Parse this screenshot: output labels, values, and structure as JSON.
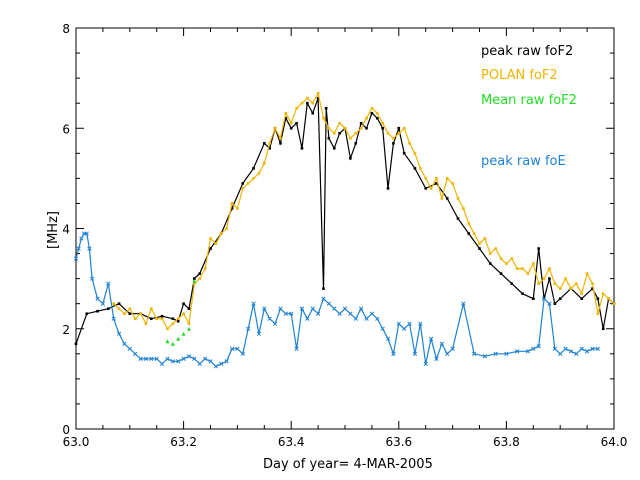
{
  "chart_data": {
    "type": "line",
    "xlabel": "Day of year= 4-MAR-2005",
    "ylabel": "[MHz]",
    "xlim": [
      63.0,
      64.0
    ],
    "ylim": [
      0,
      8
    ],
    "x_ticks": [
      "63.0",
      "63.2",
      "63.4",
      "63.6",
      "63.8",
      "64.0"
    ],
    "y_ticks": [
      "0",
      "2",
      "4",
      "6",
      "8"
    ],
    "legend": [
      {
        "name": "peak raw foF2",
        "color": "#000000"
      },
      {
        "name": "POLAN foF2",
        "color": "#f0b400"
      },
      {
        "name": "Mean raw foF2",
        "color": "#22dd22"
      },
      {
        "name": "peak raw foE",
        "color": "#1e82d2"
      }
    ],
    "series": [
      {
        "name": "peak raw foF2",
        "color": "#000000",
        "x": [
          63.0,
          63.02,
          63.04,
          63.06,
          63.08,
          63.1,
          63.12,
          63.14,
          63.16,
          63.18,
          63.19,
          63.2,
          63.21,
          63.22,
          63.23,
          63.25,
          63.27,
          63.29,
          63.31,
          63.33,
          63.35,
          63.36,
          63.37,
          63.38,
          63.39,
          63.4,
          63.41,
          63.42,
          63.43,
          63.44,
          63.45,
          63.46,
          63.465,
          63.47,
          63.48,
          63.49,
          63.5,
          63.51,
          63.52,
          63.53,
          63.54,
          63.55,
          63.56,
          63.57,
          63.58,
          63.59,
          63.6,
          63.61,
          63.63,
          63.65,
          63.67,
          63.69,
          63.71,
          63.73,
          63.75,
          63.77,
          63.79,
          63.81,
          63.83,
          63.85,
          63.86,
          63.87,
          63.88,
          63.89,
          63.9,
          63.92,
          63.94,
          63.96,
          63.97,
          63.98,
          63.99,
          64.0
        ],
        "values": [
          1.7,
          2.3,
          2.35,
          2.4,
          2.5,
          2.3,
          2.3,
          2.2,
          2.25,
          2.2,
          2.15,
          2.5,
          2.4,
          3.0,
          3.1,
          3.6,
          3.9,
          4.4,
          4.9,
          5.2,
          5.7,
          5.6,
          6.0,
          5.7,
          6.2,
          6.0,
          6.1,
          5.6,
          6.5,
          6.3,
          6.6,
          2.8,
          6.4,
          5.8,
          5.6,
          5.9,
          6.0,
          5.4,
          5.7,
          6.1,
          6.0,
          6.3,
          6.2,
          6.0,
          4.8,
          5.7,
          6.0,
          5.5,
          5.2,
          4.8,
          4.9,
          4.6,
          4.2,
          3.9,
          3.6,
          3.3,
          3.1,
          2.9,
          2.7,
          2.6,
          3.6,
          2.6,
          3.0,
          2.5,
          2.6,
          2.8,
          2.6,
          2.8,
          2.6,
          2.0,
          2.6,
          2.5
        ]
      },
      {
        "name": "POLAN foF2",
        "color": "#f0b400",
        "x": [
          63.07,
          63.08,
          63.09,
          63.1,
          63.11,
          63.12,
          63.13,
          63.14,
          63.15,
          63.16,
          63.17,
          63.18,
          63.19,
          63.2,
          63.21,
          63.22,
          63.23,
          63.24,
          63.25,
          63.26,
          63.27,
          63.28,
          63.29,
          63.3,
          63.31,
          63.32,
          63.33,
          63.34,
          63.35,
          63.36,
          63.37,
          63.38,
          63.39,
          63.4,
          63.41,
          63.42,
          63.43,
          63.44,
          63.45,
          63.46,
          63.47,
          63.48,
          63.49,
          63.5,
          63.51,
          63.52,
          63.53,
          63.54,
          63.55,
          63.56,
          63.57,
          63.58,
          63.59,
          63.6,
          63.61,
          63.62,
          63.63,
          63.64,
          63.65,
          63.66,
          63.67,
          63.68,
          63.69,
          63.7,
          63.71,
          63.72,
          63.73,
          63.74,
          63.75,
          63.76,
          63.77,
          63.78,
          63.79,
          63.8,
          63.81,
          63.82,
          63.83,
          63.84,
          63.85,
          63.86,
          63.87,
          63.88,
          63.89,
          63.9,
          63.91,
          63.92,
          63.93,
          63.94,
          63.95,
          63.96,
          63.97,
          63.98,
          63.99,
          64.0
        ],
        "values": [
          2.5,
          2.4,
          2.3,
          2.4,
          2.2,
          2.3,
          2.1,
          2.4,
          2.2,
          2.2,
          2.0,
          2.1,
          2.2,
          2.3,
          2.1,
          2.9,
          3.0,
          3.2,
          3.8,
          3.7,
          3.9,
          4.0,
          4.5,
          4.4,
          4.8,
          4.9,
          5.0,
          5.1,
          5.3,
          5.7,
          6.0,
          5.8,
          6.3,
          6.1,
          6.4,
          6.5,
          6.6,
          6.5,
          6.7,
          6.2,
          6.0,
          5.9,
          6.1,
          6.0,
          5.8,
          5.9,
          6.0,
          6.2,
          6.4,
          6.3,
          6.1,
          5.9,
          5.8,
          5.9,
          6.0,
          5.7,
          5.5,
          5.2,
          5.0,
          4.8,
          5.0,
          4.6,
          5.0,
          4.9,
          4.6,
          4.4,
          4.1,
          3.9,
          3.7,
          3.8,
          3.5,
          3.6,
          3.4,
          3.3,
          3.4,
          3.2,
          3.2,
          3.1,
          3.3,
          2.9,
          3.0,
          3.2,
          2.9,
          2.8,
          3.0,
          2.8,
          2.9,
          2.7,
          3.1,
          2.9,
          2.3,
          2.7,
          2.6,
          2.5
        ]
      },
      {
        "name": "Mean raw foF2",
        "color": "#22dd22",
        "x": [
          63.17,
          63.18,
          63.19,
          63.2,
          63.21,
          63.22
        ],
        "values": [
          1.75,
          1.7,
          1.8,
          1.9,
          2.0,
          2.95
        ],
        "markers_only": true
      },
      {
        "name": "peak raw foE",
        "color": "#1e82d2",
        "x": [
          63.0,
          63.005,
          63.01,
          63.015,
          63.02,
          63.025,
          63.03,
          63.04,
          63.05,
          63.06,
          63.07,
          63.08,
          63.09,
          63.1,
          63.11,
          63.12,
          63.13,
          63.14,
          63.15,
          63.16,
          63.17,
          63.18,
          63.19,
          63.2,
          63.21,
          63.22,
          63.23,
          63.24,
          63.25,
          63.26,
          63.27,
          63.28,
          63.29,
          63.3,
          63.31,
          63.32,
          63.33,
          63.34,
          63.35,
          63.36,
          63.37,
          63.38,
          63.39,
          63.4,
          63.41,
          63.42,
          63.43,
          63.44,
          63.45,
          63.46,
          63.47,
          63.48,
          63.49,
          63.5,
          63.51,
          63.52,
          63.53,
          63.54,
          63.55,
          63.56,
          63.57,
          63.58,
          63.59,
          63.6,
          63.61,
          63.62,
          63.63,
          63.64,
          63.65,
          63.66,
          63.67,
          63.68,
          63.69,
          63.7,
          63.72,
          63.74,
          63.76,
          63.78,
          63.8,
          63.82,
          63.84,
          63.85,
          63.86,
          63.87,
          63.88,
          63.89,
          63.9,
          63.91,
          63.92,
          63.93,
          63.94,
          63.95,
          63.96,
          63.97
        ],
        "values": [
          3.4,
          3.6,
          3.8,
          3.9,
          3.9,
          3.6,
          3.0,
          2.6,
          2.5,
          2.9,
          2.2,
          1.9,
          1.7,
          1.6,
          1.5,
          1.4,
          1.4,
          1.4,
          1.4,
          1.3,
          1.4,
          1.35,
          1.35,
          1.4,
          1.45,
          1.4,
          1.3,
          1.4,
          1.35,
          1.25,
          1.3,
          1.35,
          1.6,
          1.6,
          1.5,
          2.0,
          2.5,
          1.9,
          2.4,
          2.2,
          2.1,
          2.4,
          2.3,
          2.3,
          1.6,
          2.4,
          2.2,
          2.4,
          2.3,
          2.6,
          2.5,
          2.4,
          2.3,
          2.4,
          2.3,
          2.2,
          2.4,
          2.2,
          2.3,
          2.2,
          2.0,
          1.8,
          1.5,
          2.1,
          2.0,
          2.1,
          1.5,
          2.1,
          1.3,
          1.8,
          1.4,
          1.7,
          1.5,
          1.6,
          2.5,
          1.5,
          1.45,
          1.5,
          1.5,
          1.55,
          1.55,
          1.6,
          1.65,
          2.6,
          2.5,
          1.6,
          1.5,
          1.6,
          1.55,
          1.5,
          1.6,
          1.55,
          1.6,
          1.6
        ]
      }
    ]
  }
}
